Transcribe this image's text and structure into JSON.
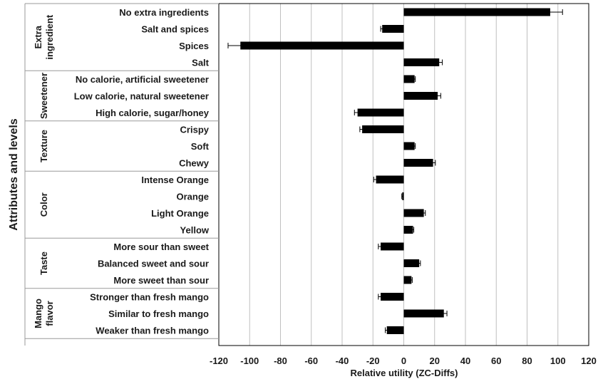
{
  "chart_data": {
    "type": "bar",
    "orientation": "horizontal",
    "xlabel": "Relative utility (ZC-Diffs)",
    "ylabel": "Attributes and levels",
    "xlim": [
      -120,
      120
    ],
    "xticks": [
      -120,
      -100,
      -80,
      -60,
      -40,
      -20,
      0,
      20,
      40,
      60,
      80,
      100,
      120
    ],
    "grid": true,
    "bar_color": "#000000",
    "grid_color": "#bfbfbf",
    "groups": [
      {
        "name_lines": [
          "Extra",
          "ingredient"
        ],
        "levels": [
          {
            "label": "No extra ingredients",
            "value": 95,
            "error": 8
          },
          {
            "label": "Salt and spices",
            "value": -14,
            "error": 1
          },
          {
            "label": "Spices",
            "value": -106,
            "error": 8
          },
          {
            "label": "Salt",
            "value": 23,
            "error": 2
          }
        ]
      },
      {
        "name_lines": [
          "Sweetener"
        ],
        "levels": [
          {
            "label": "No calorie, artificial sweetener",
            "value": 7,
            "error": 0.5
          },
          {
            "label": "Low calorie, natural sweetener",
            "value": 22,
            "error": 2
          },
          {
            "label": "High calorie, sugar/honey",
            "value": -30,
            "error": 2
          }
        ]
      },
      {
        "name_lines": [
          "Texture"
        ],
        "levels": [
          {
            "label": "Crispy",
            "value": -27,
            "error": 1.5
          },
          {
            "label": "Soft",
            "value": 7,
            "error": 0.5
          },
          {
            "label": "Chewy",
            "value": 19,
            "error": 1.5
          }
        ]
      },
      {
        "name_lines": [
          "Color"
        ],
        "levels": [
          {
            "label": "Intense Orange",
            "value": -18,
            "error": 1.5
          },
          {
            "label": "Orange",
            "value": -1,
            "error": 0.3
          },
          {
            "label": "Light Orange",
            "value": 13,
            "error": 1
          },
          {
            "label": "Yellow",
            "value": 6,
            "error": 0.5
          }
        ]
      },
      {
        "name_lines": [
          "Taste"
        ],
        "levels": [
          {
            "label": "More sour than sweet",
            "value": -15,
            "error": 1.5
          },
          {
            "label": "Balanced sweet and sour",
            "value": 10,
            "error": 0.8
          },
          {
            "label": "More sweet than sour",
            "value": 5,
            "error": 0.5
          }
        ]
      },
      {
        "name_lines": [
          "Mango",
          "flavor"
        ],
        "levels": [
          {
            "label": "Stronger than fresh mango",
            "value": -15,
            "error": 1.5
          },
          {
            "label": "Similar to fresh mango",
            "value": 26,
            "error": 2
          },
          {
            "label": "Weaker than fresh mango",
            "value": -11,
            "error": 1
          }
        ]
      }
    ]
  }
}
